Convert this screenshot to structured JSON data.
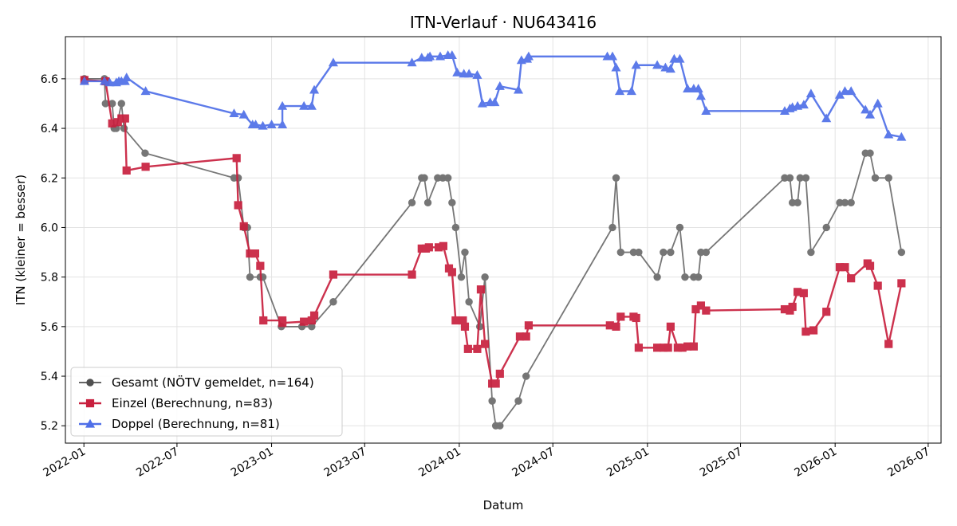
{
  "chart_data": {
    "type": "line",
    "title": "ITN-Verlauf · NU643416",
    "xlabel": "Datum",
    "ylabel": "ITN  (kleiner = besser)",
    "x_axis_type": "date",
    "xlim": [
      "2021-11-26",
      "2026-07-26"
    ],
    "ylim": [
      5.13,
      6.77
    ],
    "xticks": [
      "2022-01",
      "2022-07",
      "2023-01",
      "2023-07",
      "2024-01",
      "2024-07",
      "2025-01",
      "2025-07",
      "2026-01",
      "2026-07"
    ],
    "yticks": [
      "5.2",
      "5.4",
      "5.6",
      "5.8",
      "6.0",
      "6.2",
      "6.4",
      "6.6"
    ],
    "grid": true,
    "legend_position": "lower-left",
    "series": [
      {
        "name": "Gesamt (NÖTV gemeldet, n=164)",
        "color": "#505050",
        "marker": "circle",
        "points": [
          [
            "2022-01-02",
            6.6
          ],
          [
            "2022-02-10",
            6.6
          ],
          [
            "2022-02-12",
            6.5
          ],
          [
            "2022-02-25",
            6.5
          ],
          [
            "2022-03-01",
            6.4
          ],
          [
            "2022-03-05",
            6.4
          ],
          [
            "2022-03-15",
            6.5
          ],
          [
            "2022-03-20",
            6.4
          ],
          [
            "2022-04-30",
            6.3
          ],
          [
            "2022-10-20",
            6.2
          ],
          [
            "2022-10-28",
            6.2
          ],
          [
            "2022-11-08",
            6.0
          ],
          [
            "2022-11-15",
            6.0
          ],
          [
            "2022-11-20",
            5.8
          ],
          [
            "2022-12-10",
            5.8
          ],
          [
            "2022-12-15",
            5.8
          ],
          [
            "2023-01-20",
            5.6
          ],
          [
            "2023-03-01",
            5.6
          ],
          [
            "2023-03-20",
            5.6
          ],
          [
            "2023-05-01",
            5.7
          ],
          [
            "2023-10-01",
            6.1
          ],
          [
            "2023-10-20",
            6.2
          ],
          [
            "2023-10-25",
            6.2
          ],
          [
            "2023-11-01",
            6.1
          ],
          [
            "2023-11-20",
            6.2
          ],
          [
            "2023-11-30",
            6.2
          ],
          [
            "2023-12-10",
            6.2
          ],
          [
            "2023-12-18",
            6.1
          ],
          [
            "2023-12-25",
            6.0
          ],
          [
            "2024-01-05",
            5.8
          ],
          [
            "2024-01-12",
            5.9
          ],
          [
            "2024-01-20",
            5.7
          ],
          [
            "2024-02-10",
            5.6
          ],
          [
            "2024-02-20",
            5.8
          ],
          [
            "2024-03-05",
            5.3
          ],
          [
            "2024-03-12",
            5.2
          ],
          [
            "2024-03-20",
            5.2
          ],
          [
            "2024-04-25",
            5.3
          ],
          [
            "2024-05-10",
            5.4
          ],
          [
            "2024-10-25",
            6.0
          ],
          [
            "2024-11-01",
            6.2
          ],
          [
            "2024-11-10",
            5.9
          ],
          [
            "2024-12-05",
            5.9
          ],
          [
            "2024-12-15",
            5.9
          ],
          [
            "2025-01-20",
            5.8
          ],
          [
            "2025-02-01",
            5.9
          ],
          [
            "2025-02-15",
            5.9
          ],
          [
            "2025-03-05",
            6.0
          ],
          [
            "2025-03-15",
            5.8
          ],
          [
            "2025-04-01",
            5.8
          ],
          [
            "2025-04-10",
            5.8
          ],
          [
            "2025-04-15",
            5.9
          ],
          [
            "2025-04-25",
            5.9
          ],
          [
            "2025-09-25",
            6.2
          ],
          [
            "2025-10-05",
            6.2
          ],
          [
            "2025-10-10",
            6.1
          ],
          [
            "2025-10-20",
            6.1
          ],
          [
            "2025-10-25",
            6.2
          ],
          [
            "2025-11-05",
            6.2
          ],
          [
            "2025-11-15",
            5.9
          ],
          [
            "2025-12-15",
            6.0
          ],
          [
            "2026-01-10",
            6.1
          ],
          [
            "2026-01-20",
            6.1
          ],
          [
            "2026-02-01",
            6.1
          ],
          [
            "2026-03-01",
            6.3
          ],
          [
            "2026-03-10",
            6.3
          ],
          [
            "2026-03-20",
            6.2
          ],
          [
            "2026-04-15",
            6.2
          ],
          [
            "2026-05-10",
            5.9
          ]
        ]
      },
      {
        "name": "Einzel (Berechnung, n=83)",
        "color": "#c8203e",
        "marker": "square",
        "points": [
          [
            "2022-01-02",
            6.595
          ],
          [
            "2022-02-12",
            6.59
          ],
          [
            "2022-02-25",
            6.42
          ],
          [
            "2022-03-08",
            6.425
          ],
          [
            "2022-03-15",
            6.44
          ],
          [
            "2022-03-22",
            6.44
          ],
          [
            "2022-03-25",
            6.23
          ],
          [
            "2022-05-01",
            6.245
          ],
          [
            "2022-10-25",
            6.28
          ],
          [
            "2022-10-28",
            6.09
          ],
          [
            "2022-11-08",
            6.005
          ],
          [
            "2022-11-20",
            5.895
          ],
          [
            "2022-11-30",
            5.895
          ],
          [
            "2022-12-10",
            5.845
          ],
          [
            "2022-12-16",
            5.625
          ],
          [
            "2023-01-22",
            5.625
          ],
          [
            "2023-01-22",
            5.615
          ],
          [
            "2023-03-05",
            5.62
          ],
          [
            "2023-03-20",
            5.625
          ],
          [
            "2023-03-25",
            5.645
          ],
          [
            "2023-05-01",
            5.81
          ],
          [
            "2023-10-01",
            5.81
          ],
          [
            "2023-10-20",
            5.915
          ],
          [
            "2023-10-28",
            5.915
          ],
          [
            "2023-11-03",
            5.92
          ],
          [
            "2023-11-22",
            5.92
          ],
          [
            "2023-12-01",
            5.925
          ],
          [
            "2023-12-12",
            5.835
          ],
          [
            "2023-12-18",
            5.82
          ],
          [
            "2023-12-25",
            5.625
          ],
          [
            "2024-01-08",
            5.625
          ],
          [
            "2024-01-12",
            5.6
          ],
          [
            "2024-01-18",
            5.51
          ],
          [
            "2024-02-05",
            5.51
          ],
          [
            "2024-02-12",
            5.75
          ],
          [
            "2024-02-20",
            5.53
          ],
          [
            "2024-03-05",
            5.37
          ],
          [
            "2024-03-12",
            5.37
          ],
          [
            "2024-03-20",
            5.41
          ],
          [
            "2024-04-28",
            5.56
          ],
          [
            "2024-05-10",
            5.56
          ],
          [
            "2024-05-15",
            5.605
          ],
          [
            "2024-10-20",
            5.605
          ],
          [
            "2024-11-01",
            5.6
          ],
          [
            "2024-11-10",
            5.64
          ],
          [
            "2024-12-05",
            5.64
          ],
          [
            "2024-12-10",
            5.635
          ],
          [
            "2024-12-15",
            5.515
          ],
          [
            "2025-01-20",
            5.515
          ],
          [
            "2025-02-01",
            5.515
          ],
          [
            "2025-02-10",
            5.515
          ],
          [
            "2025-02-15",
            5.6
          ],
          [
            "2025-03-01",
            5.515
          ],
          [
            "2025-03-10",
            5.515
          ],
          [
            "2025-03-20",
            5.52
          ],
          [
            "2025-04-01",
            5.52
          ],
          [
            "2025-04-05",
            5.67
          ],
          [
            "2025-04-15",
            5.685
          ],
          [
            "2025-04-25",
            5.665
          ],
          [
            "2025-09-25",
            5.67
          ],
          [
            "2025-10-05",
            5.665
          ],
          [
            "2025-10-10",
            5.68
          ],
          [
            "2025-10-20",
            5.74
          ],
          [
            "2025-11-01",
            5.735
          ],
          [
            "2025-11-05",
            5.58
          ],
          [
            "2025-11-20",
            5.585
          ],
          [
            "2025-12-15",
            5.66
          ],
          [
            "2026-01-10",
            5.84
          ],
          [
            "2026-01-20",
            5.84
          ],
          [
            "2026-02-01",
            5.795
          ],
          [
            "2026-03-05",
            5.855
          ],
          [
            "2026-03-10",
            5.845
          ],
          [
            "2026-03-25",
            5.765
          ],
          [
            "2026-04-15",
            5.53
          ],
          [
            "2026-05-10",
            5.775
          ]
        ]
      },
      {
        "name": "Doppel (Berechnung, n=81)",
        "color": "#4f6fe8",
        "marker": "triangle",
        "points": [
          [
            "2022-01-02",
            6.59
          ],
          [
            "2022-02-10",
            6.59
          ],
          [
            "2022-02-20",
            6.585
          ],
          [
            "2022-03-05",
            6.585
          ],
          [
            "2022-03-10",
            6.59
          ],
          [
            "2022-03-15",
            6.59
          ],
          [
            "2022-03-22",
            6.59
          ],
          [
            "2022-03-25",
            6.605
          ],
          [
            "2022-05-01",
            6.55
          ],
          [
            "2022-10-20",
            6.46
          ],
          [
            "2022-11-08",
            6.455
          ],
          [
            "2022-11-25",
            6.415
          ],
          [
            "2022-12-01",
            6.415
          ],
          [
            "2022-12-15",
            6.41
          ],
          [
            "2023-01-01",
            6.415
          ],
          [
            "2023-01-22",
            6.415
          ],
          [
            "2023-01-22",
            6.49
          ],
          [
            "2023-03-05",
            6.49
          ],
          [
            "2023-03-20",
            6.49
          ],
          [
            "2023-03-25",
            6.555
          ],
          [
            "2023-05-01",
            6.665
          ],
          [
            "2023-10-01",
            6.665
          ],
          [
            "2023-10-20",
            6.685
          ],
          [
            "2023-11-01",
            6.685
          ],
          [
            "2023-11-05",
            6.69
          ],
          [
            "2023-11-25",
            6.69
          ],
          [
            "2023-12-10",
            6.695
          ],
          [
            "2023-12-18",
            6.695
          ],
          [
            "2023-12-28",
            6.625
          ],
          [
            "2024-01-10",
            6.62
          ],
          [
            "2024-01-20",
            6.62
          ],
          [
            "2024-02-05",
            6.615
          ],
          [
            "2024-02-15",
            6.5
          ],
          [
            "2024-03-01",
            6.505
          ],
          [
            "2024-03-10",
            6.505
          ],
          [
            "2024-03-20",
            6.57
          ],
          [
            "2024-04-25",
            6.555
          ],
          [
            "2024-05-01",
            6.675
          ],
          [
            "2024-05-12",
            6.68
          ],
          [
            "2024-05-15",
            6.69
          ],
          [
            "2024-10-15",
            6.69
          ],
          [
            "2024-10-25",
            6.69
          ],
          [
            "2024-11-01",
            6.645
          ],
          [
            "2024-11-08",
            6.55
          ],
          [
            "2024-12-01",
            6.55
          ],
          [
            "2024-12-10",
            6.655
          ],
          [
            "2025-01-20",
            6.655
          ],
          [
            "2025-02-05",
            6.645
          ],
          [
            "2025-02-15",
            6.64
          ],
          [
            "2025-02-22",
            6.68
          ],
          [
            "2025-03-05",
            6.68
          ],
          [
            "2025-03-20",
            6.56
          ],
          [
            "2025-04-01",
            6.56
          ],
          [
            "2025-04-10",
            6.56
          ],
          [
            "2025-04-15",
            6.53
          ],
          [
            "2025-04-25",
            6.47
          ],
          [
            "2025-09-25",
            6.47
          ],
          [
            "2025-10-05",
            6.48
          ],
          [
            "2025-10-10",
            6.485
          ],
          [
            "2025-10-20",
            6.49
          ],
          [
            "2025-11-01",
            6.495
          ],
          [
            "2025-11-15",
            6.54
          ],
          [
            "2025-12-15",
            6.44
          ],
          [
            "2026-01-10",
            6.535
          ],
          [
            "2026-01-20",
            6.55
          ],
          [
            "2026-02-01",
            6.55
          ],
          [
            "2026-03-01",
            6.475
          ],
          [
            "2026-03-10",
            6.455
          ],
          [
            "2026-03-25",
            6.5
          ],
          [
            "2026-04-15",
            6.375
          ],
          [
            "2026-05-10",
            6.365
          ]
        ]
      }
    ]
  }
}
